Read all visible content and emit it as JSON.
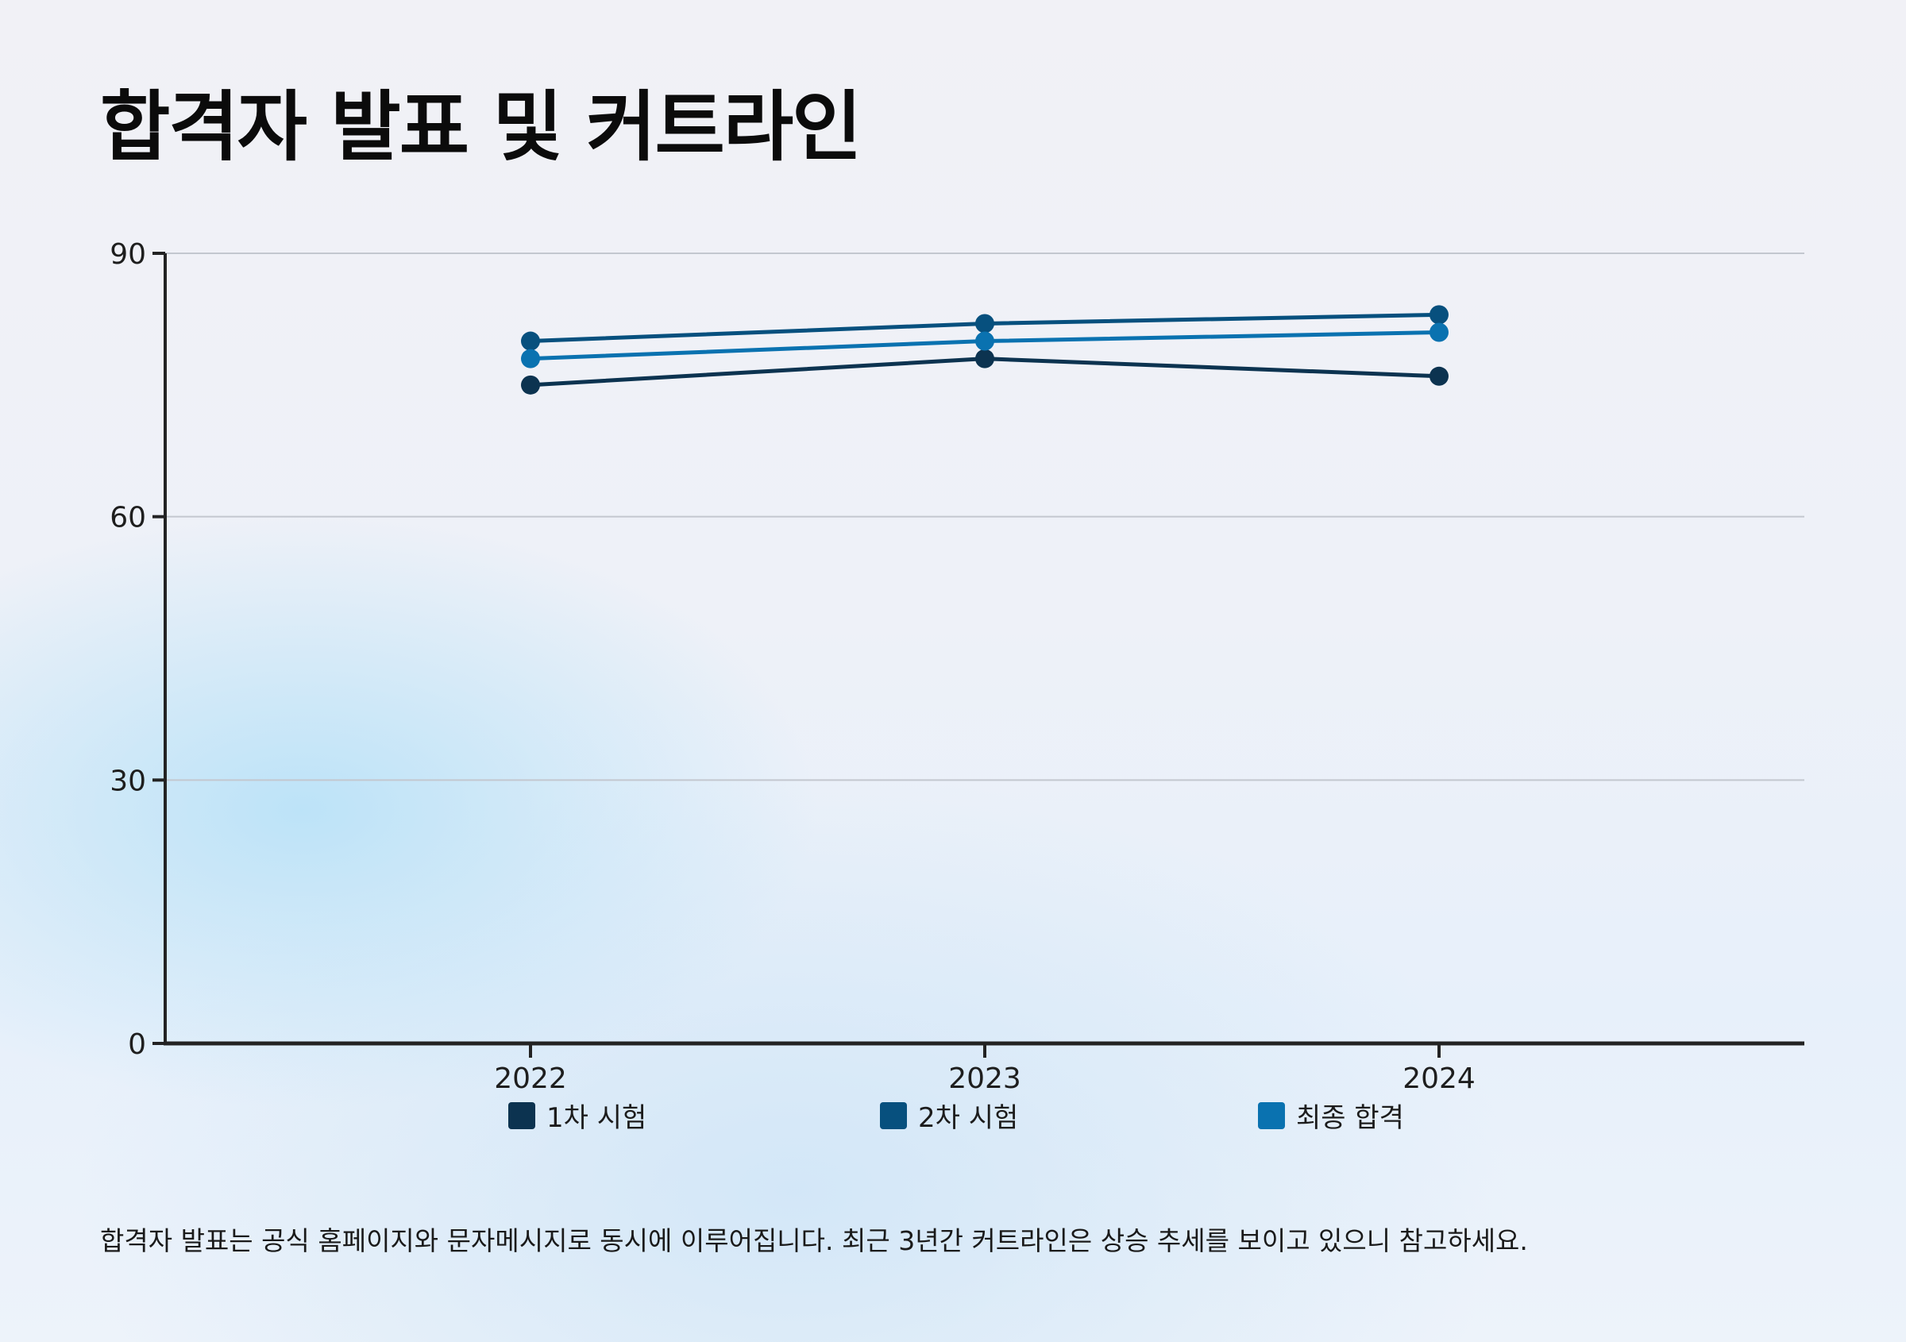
{
  "title": "합격자 발표 및 커트라인",
  "footnote": "합격자 발표는 공식 홈페이지와 문자메시지로 동시에 이루어집니다. 최근 3년간 커트라인은 상승 추세를 보이고 있으니 참고하세요.",
  "chart_data": {
    "type": "line",
    "title": "합격자 발표 및 커트라인",
    "xlabel": "",
    "ylabel": "",
    "x": [
      "2022",
      "2023",
      "2024"
    ],
    "ylim": [
      0,
      90
    ],
    "yticks": [
      0,
      30,
      60,
      90
    ],
    "grid": true,
    "legend_position": "bottom",
    "series": [
      {
        "name": "1차 시험",
        "color": "#0c3350",
        "values": [
          75,
          78,
          76
        ]
      },
      {
        "name": "2차 시험",
        "color": "#07507e",
        "values": [
          80,
          82,
          83
        ]
      },
      {
        "name": "최종 합격",
        "color": "#0a72b0",
        "values": [
          78,
          80,
          81
        ]
      }
    ]
  },
  "colors": {
    "axis": "#232323",
    "grid": "#c3c7cf"
  }
}
